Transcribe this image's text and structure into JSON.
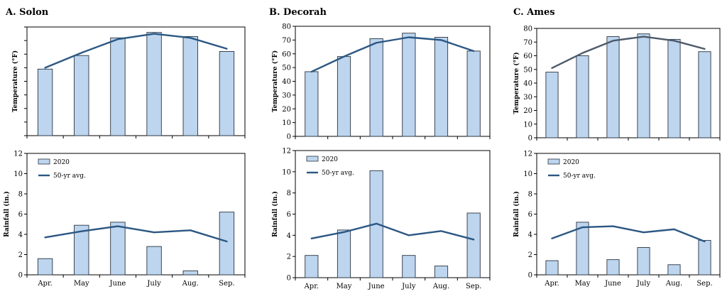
{
  "colors": {
    "bar_fill": "#bdd5ee",
    "bar_stroke": "#2a3440",
    "line": "#2c5783",
    "line_ames": "#4d5a6a",
    "frame": "#000000"
  },
  "legend": {
    "bar": "2020",
    "line": "50-yr avg."
  },
  "chart_data": [
    {
      "id": "solon",
      "title": "A. Solon",
      "temperature": {
        "type": "bar+line",
        "categories": [
          "Apr.",
          "May",
          "June",
          "July",
          "Aug.",
          "Sep."
        ],
        "ylabel": "Temperature (°F)",
        "ylim": [
          0,
          80
        ],
        "yticks_labeled": false,
        "series": [
          {
            "name": "2020",
            "kind": "bar",
            "values": [
              49,
              59,
              72,
              76,
              73,
              62
            ]
          },
          {
            "name": "50-yr avg.",
            "kind": "line",
            "values": [
              50,
              61,
              71,
              75,
              72,
              64
            ]
          }
        ]
      },
      "rainfall": {
        "type": "bar+line",
        "categories": [
          "Apr.",
          "May",
          "June",
          "July",
          "Aug.",
          "Sep."
        ],
        "ylabel": "Rainfall (in.)",
        "ylim": [
          0,
          12
        ],
        "yticks": [
          0,
          2,
          4,
          6,
          8,
          10,
          12
        ],
        "series": [
          {
            "name": "2020",
            "kind": "bar",
            "values": [
              1.6,
              4.9,
              5.2,
              2.8,
              0.4,
              6.2
            ]
          },
          {
            "name": "50-yr avg.",
            "kind": "line",
            "values": [
              3.7,
              4.3,
              4.8,
              4.2,
              4.4,
              3.3
            ]
          }
        ]
      }
    },
    {
      "id": "decorah",
      "title": "B. Decorah",
      "temperature": {
        "type": "bar+line",
        "categories": [
          "Apr.",
          "May",
          "June",
          "July",
          "Aug.",
          "Sep."
        ],
        "ylabel": "Temperature (°F)",
        "ylim": [
          0,
          80
        ],
        "yticks": [
          0,
          10,
          20,
          30,
          40,
          50,
          60,
          70,
          80
        ],
        "series": [
          {
            "name": "2020",
            "kind": "bar",
            "values": [
              47,
              58,
              71,
              75,
              72,
              62
            ]
          },
          {
            "name": "50-yr avg.",
            "kind": "line",
            "values": [
              47,
              58,
              68,
              72,
              70,
              62
            ]
          }
        ]
      },
      "rainfall": {
        "type": "bar+line",
        "categories": [
          "Apr.",
          "May",
          "June",
          "July",
          "Aug.",
          "Sep."
        ],
        "ylabel": "Rainfall (in.)",
        "ylim": [
          0,
          12
        ],
        "yticks": [
          0,
          2,
          4,
          6,
          8,
          10,
          12
        ],
        "series": [
          {
            "name": "2020",
            "kind": "bar",
            "values": [
              2.1,
              4.5,
              10.1,
              2.1,
              1.1,
              6.1
            ]
          },
          {
            "name": "50-yr avg.",
            "kind": "line",
            "values": [
              3.7,
              4.3,
              5.1,
              4.0,
              4.4,
              3.6
            ]
          }
        ]
      }
    },
    {
      "id": "ames",
      "title": "C. Ames",
      "temperature": {
        "type": "bar+line",
        "categories": [
          "Apr.",
          "May",
          "June",
          "July",
          "Aug.",
          "Sep."
        ],
        "ylabel": "Temperature (°F)",
        "ylim": [
          0,
          80
        ],
        "yticks": [
          0,
          10,
          20,
          30,
          40,
          50,
          60,
          70,
          80
        ],
        "series": [
          {
            "name": "2020",
            "kind": "bar",
            "values": [
              48,
              60,
              74,
              76,
              72,
              63
            ]
          },
          {
            "name": "50-yr avg.",
            "kind": "line",
            "values": [
              51,
              62,
              71,
              74,
              71,
              65
            ]
          }
        ]
      },
      "rainfall": {
        "type": "bar+line",
        "categories": [
          "Apr.",
          "May",
          "June",
          "July",
          "Aug.",
          "Sep."
        ],
        "ylabel": "Rainfall (in.)",
        "ylim": [
          0,
          12
        ],
        "yticks": [
          0,
          2,
          4,
          6,
          8,
          10,
          12
        ],
        "series": [
          {
            "name": "2020",
            "kind": "bar",
            "values": [
              1.4,
              5.2,
              1.5,
              2.7,
              1.0,
              3.4
            ]
          },
          {
            "name": "50-yr avg.",
            "kind": "line",
            "values": [
              3.6,
              4.7,
              4.8,
              4.2,
              4.5,
              3.3
            ]
          }
        ]
      }
    }
  ]
}
